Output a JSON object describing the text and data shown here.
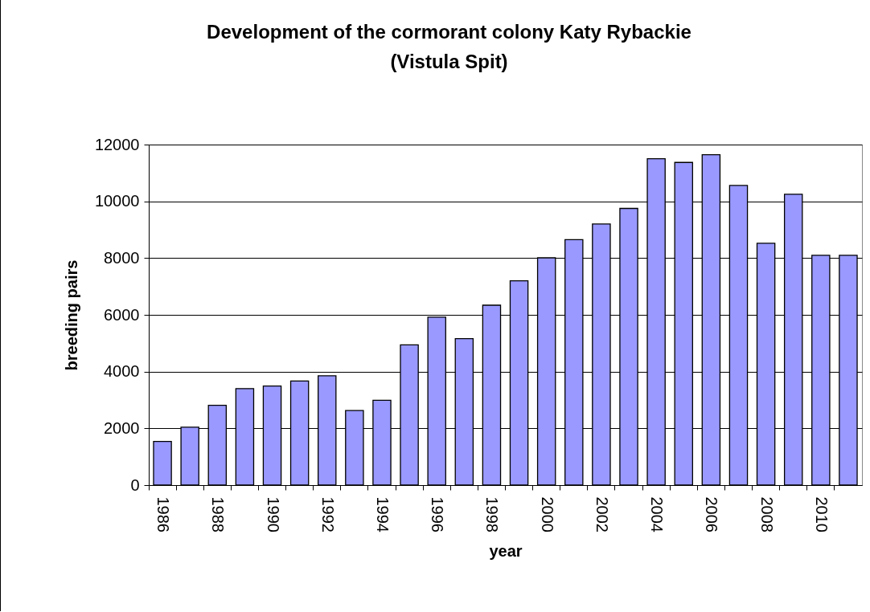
{
  "chart_data": {
    "type": "bar",
    "title": [
      "Development of the cormorant colony Katy Rybackie",
      "(Vistula Spit)"
    ],
    "xlabel": "year",
    "ylabel": "breeding pairs",
    "categories": [
      "1986",
      null,
      "1988",
      null,
      "1990",
      null,
      "1992",
      null,
      "1994",
      null,
      "1996",
      null,
      "1998",
      null,
      "2000",
      null,
      "2002",
      null,
      "2004",
      null,
      "2006",
      null,
      "2008",
      null,
      "2010",
      null
    ],
    "values": [
      1540,
      2040,
      2810,
      3400,
      3490,
      3670,
      3850,
      2630,
      2990,
      4940,
      5920,
      5160,
      6340,
      7200,
      8010,
      8650,
      9200,
      9750,
      11500,
      11370,
      11640,
      10560,
      8520,
      10250,
      8100,
      8100
    ],
    "color": "#9999ff",
    "ylim": [
      0,
      12000
    ],
    "yticks": [
      0,
      2000,
      4000,
      6000,
      8000,
      10000,
      12000
    ],
    "grid": "y"
  }
}
